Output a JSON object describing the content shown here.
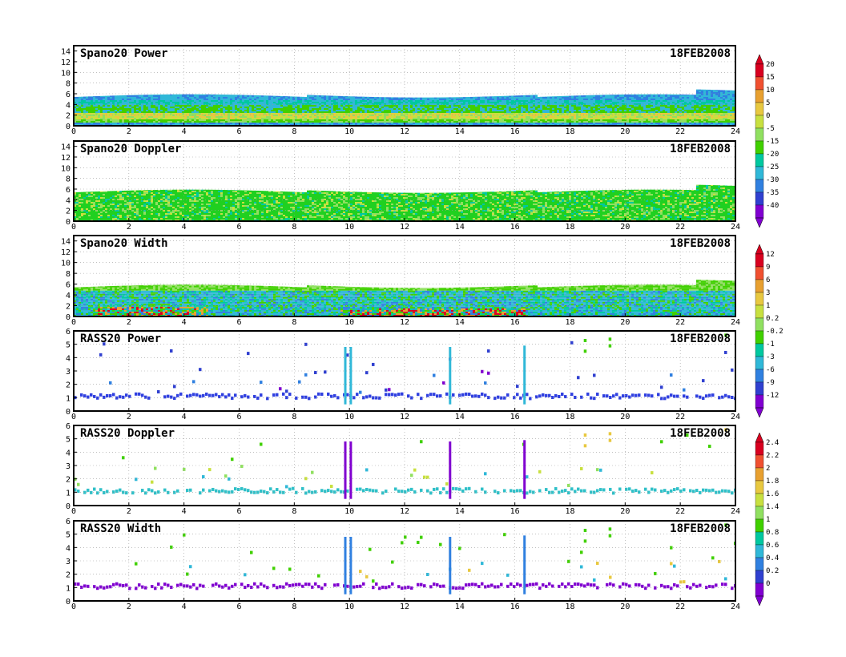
{
  "chart_data": [
    {
      "type": "heatmap",
      "title": "Spano20  Power",
      "date": "18FEB2008",
      "x_ticks": [
        "0",
        "2",
        "4",
        "6",
        "8",
        "10",
        "12",
        "14",
        "16",
        "18",
        "20",
        "22",
        "24"
      ],
      "y_ticks": [
        "0",
        "2",
        "4",
        "6",
        "8",
        "10",
        "12",
        "14"
      ],
      "xlim": [
        0,
        24
      ],
      "ylim": [
        0,
        15
      ],
      "colorbar": "power"
    },
    {
      "type": "heatmap",
      "title": "Spano20  Doppler",
      "date": "18FEB2008",
      "x_ticks": [
        "0",
        "2",
        "4",
        "6",
        "8",
        "10",
        "12",
        "14",
        "16",
        "18",
        "20",
        "22",
        "24"
      ],
      "y_ticks": [
        "0",
        "2",
        "4",
        "6",
        "8",
        "10",
        "12",
        "14"
      ],
      "xlim": [
        0,
        24
      ],
      "ylim": [
        0,
        15
      ]
    },
    {
      "type": "heatmap",
      "title": "Spano20  Width",
      "date": "18FEB2008",
      "x_ticks": [
        "0",
        "2",
        "4",
        "6",
        "8",
        "10",
        "12",
        "14",
        "16",
        "18",
        "20",
        "22",
        "24"
      ],
      "y_ticks": [
        "0",
        "2",
        "4",
        "6",
        "8",
        "10",
        "12",
        "14"
      ],
      "xlim": [
        0,
        24
      ],
      "ylim": [
        0,
        15
      ],
      "colorbar": "doppler"
    },
    {
      "type": "heatmap",
      "title": "RASS20  Power",
      "date": "18FEB2008",
      "x_ticks": [
        "0",
        "2",
        "4",
        "6",
        "8",
        "10",
        "12",
        "14",
        "16",
        "18",
        "20",
        "22",
        "24"
      ],
      "y_ticks": [
        "0",
        "1",
        "2",
        "3",
        "4",
        "5",
        "6"
      ],
      "xlim": [
        0,
        24
      ],
      "ylim": [
        0,
        6
      ]
    },
    {
      "type": "heatmap",
      "title": "RASS20  Doppler",
      "date": "18FEB2008",
      "x_ticks": [
        "0",
        "2",
        "4",
        "6",
        "8",
        "10",
        "12",
        "14",
        "16",
        "18",
        "20",
        "22",
        "24"
      ],
      "y_ticks": [
        "0",
        "1",
        "2",
        "3",
        "4",
        "5",
        "6"
      ],
      "xlim": [
        0,
        24
      ],
      "ylim": [
        0,
        6
      ],
      "colorbar": "width"
    },
    {
      "type": "heatmap",
      "title": "RASS20  Width",
      "date": "18FEB2008",
      "x_ticks": [
        "0",
        "2",
        "4",
        "6",
        "8",
        "10",
        "12",
        "14",
        "16",
        "18",
        "20",
        "22",
        "24"
      ],
      "y_ticks": [
        "0",
        "1",
        "2",
        "3",
        "4",
        "5",
        "6"
      ],
      "xlim": [
        0,
        24
      ],
      "ylim": [
        0,
        6
      ]
    }
  ],
  "colorbars": {
    "power": {
      "labels": [
        "20",
        "15",
        "10",
        "5",
        "0",
        "-5",
        "-15",
        "-20",
        "-25",
        "-30",
        "-35",
        "-40"
      ]
    },
    "doppler": {
      "labels": [
        "12",
        "9",
        "6",
        "3",
        "1",
        "0.2",
        "-0.2",
        "-1",
        "-3",
        "-6",
        "-9",
        "-12"
      ]
    },
    "width": {
      "labels": [
        "2.4",
        "2.2",
        "2",
        "1.8",
        "1.6",
        "1.4",
        "1",
        "0.8",
        "0.6",
        "0.4",
        "0.2",
        "0"
      ]
    }
  },
  "colors": {
    "scale": [
      "#d8001f",
      "#f05030",
      "#e8a030",
      "#e8c840",
      "#c8e040",
      "#90e060",
      "#40d000",
      "#00c8a0",
      "#30b8d8",
      "#3080e0",
      "#3040d0",
      "#8000d0"
    ],
    "profiler_bg_green": "#20d020",
    "profiler_teal": "#20c8b0",
    "rass_blue": "#3040e0",
    "rass_purple": "#8000d0",
    "rass_cyan": "#30c0c8"
  }
}
